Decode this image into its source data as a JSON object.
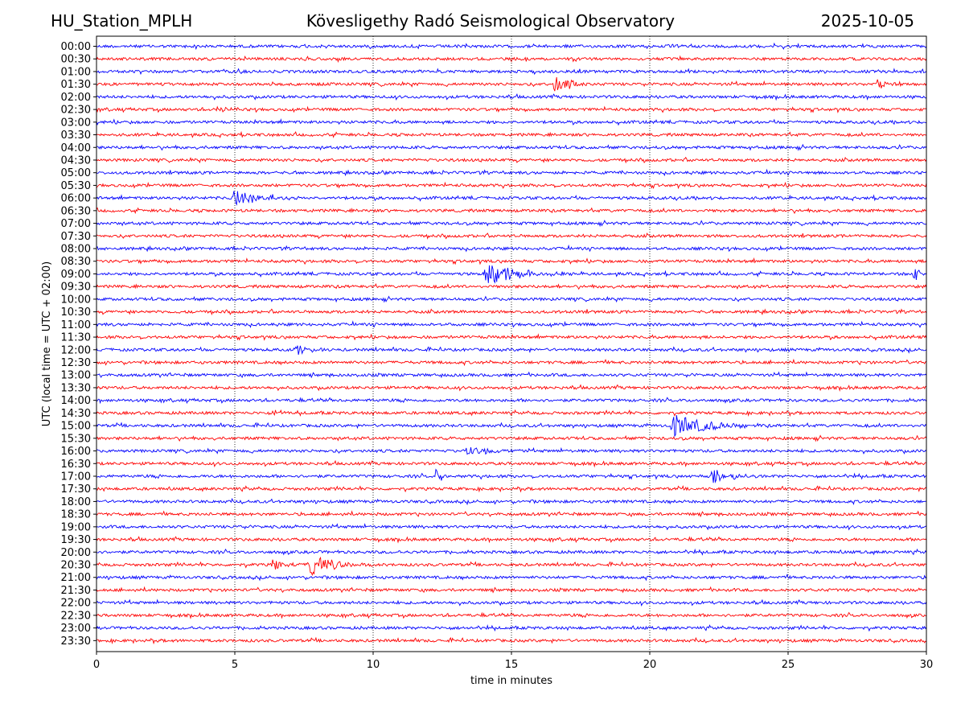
{
  "header": {
    "station": "HU_Station_MPLH",
    "observatory": "Kövesligethy Radó Seismological Observatory",
    "date": "2025-10-05"
  },
  "chart_data": {
    "type": "line",
    "title": "Kövesligethy Radó Seismological Observatory",
    "xlabel": "time in minutes",
    "ylabel": "UTC (local time = UTC + 02:00)",
    "xlim": [
      0,
      30
    ],
    "xticks": [
      0,
      5,
      10,
      15,
      20,
      25,
      30
    ],
    "x_gridlines": [
      5,
      10,
      15,
      20,
      25
    ],
    "colors": [
      "#0000ff",
      "#ff0000"
    ],
    "rows": [
      "00:00",
      "00:30",
      "01:00",
      "01:30",
      "02:00",
      "02:30",
      "03:00",
      "03:30",
      "04:00",
      "04:30",
      "05:00",
      "05:30",
      "06:00",
      "06:30",
      "07:00",
      "07:30",
      "08:00",
      "08:30",
      "09:00",
      "09:30",
      "10:00",
      "10:30",
      "11:00",
      "11:30",
      "12:00",
      "12:30",
      "13:00",
      "13:30",
      "14:00",
      "14:30",
      "15:00",
      "15:30",
      "16:00",
      "16:30",
      "17:00",
      "17:30",
      "18:00",
      "18:30",
      "19:00",
      "19:30",
      "20:00",
      "20:30",
      "21:00",
      "21:30",
      "22:00",
      "22:30",
      "23:00",
      "23:30"
    ],
    "events": [
      {
        "row": "01:30",
        "start_min": 16.5,
        "duration_min": 1.4,
        "amplitude": 1.6
      },
      {
        "row": "01:30",
        "start_min": 28.2,
        "duration_min": 1.5,
        "amplitude": 0.6
      },
      {
        "row": "02:30",
        "start_min": 4.3,
        "duration_min": 0.8,
        "amplitude": 0.6
      },
      {
        "row": "06:00",
        "start_min": 4.85,
        "duration_min": 2.8,
        "amplitude": 1.3
      },
      {
        "row": "09:00",
        "start_min": 14.0,
        "duration_min": 3.5,
        "amplitude": 1.6
      },
      {
        "row": "09:00",
        "start_min": 29.5,
        "duration_min": 0.5,
        "amplitude": 1.6
      },
      {
        "row": "12:00",
        "start_min": 7.1,
        "duration_min": 1.6,
        "amplitude": 0.8
      },
      {
        "row": "14:30",
        "start_min": 6.3,
        "duration_min": 0.9,
        "amplitude": 0.7
      },
      {
        "row": "15:00",
        "start_min": 20.7,
        "duration_min": 3.2,
        "amplitude": 1.8
      },
      {
        "row": "16:00",
        "start_min": 13.3,
        "duration_min": 2.0,
        "amplitude": 0.8
      },
      {
        "row": "17:00",
        "start_min": 12.2,
        "duration_min": 0.8,
        "amplitude": 1.3
      },
      {
        "row": "17:00",
        "start_min": 22.2,
        "duration_min": 1.8,
        "amplitude": 1.0
      },
      {
        "row": "20:30",
        "start_min": 6.3,
        "duration_min": 1.0,
        "amplitude": 1.0
      },
      {
        "row": "20:30",
        "start_min": 7.6,
        "duration_min": 2.4,
        "amplitude": 1.6
      }
    ]
  }
}
